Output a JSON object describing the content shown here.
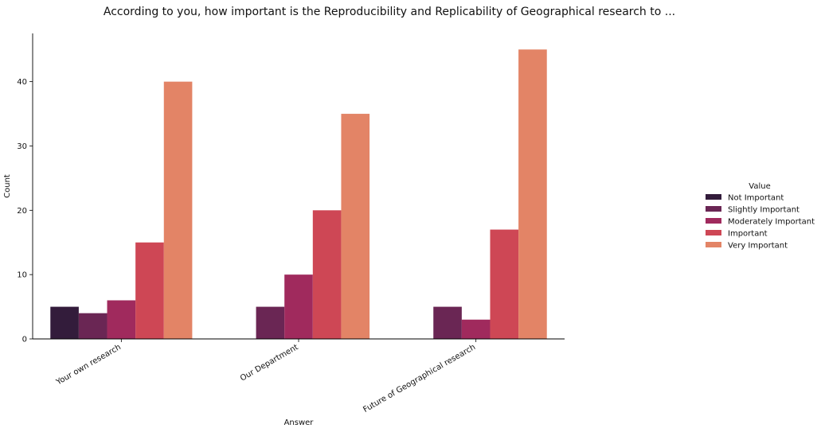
{
  "chart_data": {
    "type": "bar",
    "title": "According to you, how important is the Reproducibility and Replicability of Geographical research to ...",
    "xlabel": "Answer",
    "ylabel": "Count",
    "categories": [
      "Your own research",
      "Our Department",
      "Future of Geographical research"
    ],
    "ylim": [
      0,
      47.5
    ],
    "yticks": [
      0,
      10,
      20,
      30,
      40
    ],
    "grid": false,
    "legend_title": "Value",
    "legend_position": "right",
    "series": [
      {
        "name": "Not Important",
        "color": "#331C3B",
        "values": [
          5,
          null,
          null
        ]
      },
      {
        "name": "Slightly Important",
        "color": "#6A2654",
        "values": [
          4,
          5,
          5
        ]
      },
      {
        "name": "Moderately Important",
        "color": "#A02A5D",
        "values": [
          6,
          10,
          3
        ]
      },
      {
        "name": "Important",
        "color": "#CE4755",
        "values": [
          15,
          20,
          17
        ]
      },
      {
        "name": "Very Important",
        "color": "#E38466",
        "values": [
          40,
          35,
          45
        ]
      }
    ]
  }
}
